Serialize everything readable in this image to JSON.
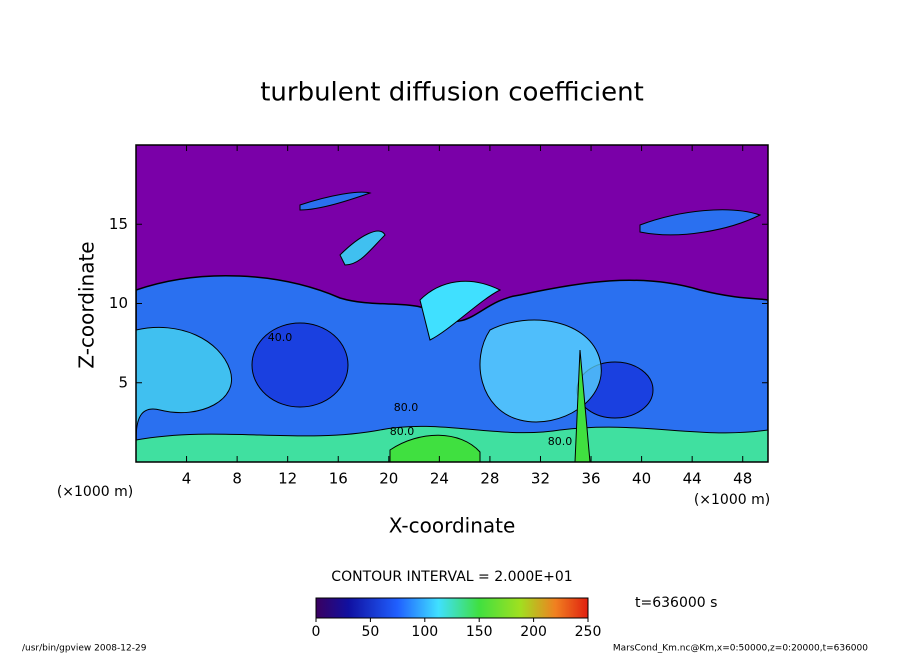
{
  "chart_data": {
    "type": "contour",
    "title": "turbulent diffusion coefficient",
    "x_label": "X-coordinate",
    "y_label": "Z-coordinate",
    "x_unit": "(×1000 m)",
    "y_unit": "(×1000 m)",
    "xlim": [
      0,
      50
    ],
    "xticks": [
      4,
      8,
      12,
      16,
      20,
      24,
      28,
      32,
      36,
      40,
      44,
      48
    ],
    "ylim": [
      0,
      20
    ],
    "yticks": [
      5,
      10,
      15
    ],
    "contour_labels": [
      "40.0",
      "80.0",
      "80.0",
      "80.0"
    ],
    "contour_interval": "CONTOUR INTERVAL = 2.000E+01",
    "clim": [
      0,
      250
    ],
    "cticks": [
      0,
      50,
      100,
      150,
      200,
      250
    ],
    "time": "t=636000 s",
    "footer_left": "/usr/bin/gpview   2008-12-29",
    "footer_right": "MarsCond_Km.nc@Km,x=0:50000,z=0:20000,t=636000"
  }
}
